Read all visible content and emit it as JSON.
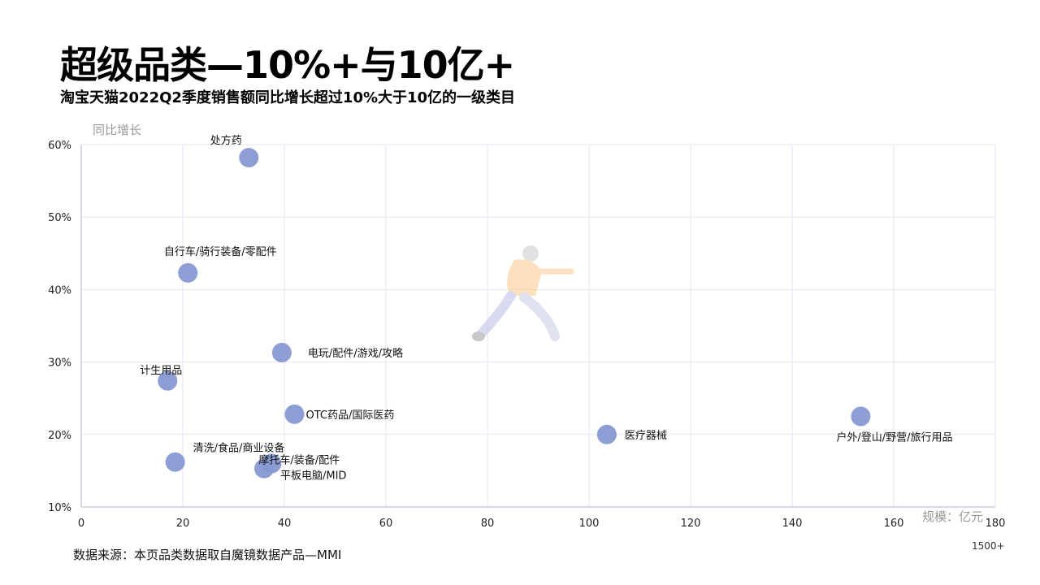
{
  "page": {
    "title": "超级品类—10%+与10亿+",
    "subtitle": "淘宝天猫2022Q2季度销售额同比增长超过10%大于10亿的一级类目",
    "footer": "数据来源：本页品类数据取自魔镜数据产品—MMI",
    "corner_note": "1500+"
  },
  "colors": {
    "bubble": "#8799d3",
    "grid": "#e3e6f3",
    "axis_label": "#999999"
  },
  "icons": {
    "illustration": "running-person-illustration"
  },
  "chart_data": {
    "type": "scatter",
    "xlabel": "规模：亿元",
    "ylabel": "同比增长",
    "xlim": [
      0,
      180
    ],
    "ylim": [
      10,
      60
    ],
    "x_ticks": [
      "0",
      "20",
      "40",
      "60",
      "80",
      "100",
      "120",
      "140",
      "160",
      "180"
    ],
    "y_ticks": [
      "10%",
      "20%",
      "30%",
      "40%",
      "50%",
      "60%"
    ],
    "grid": true,
    "points": [
      {
        "label": "处方药",
        "x": 33,
        "y": 58.2
      },
      {
        "label": "自行车/骑行装备/零配件",
        "x": 21,
        "y": 42.3
      },
      {
        "label": "电玩/配件/游戏/攻略",
        "x": 39.5,
        "y": 31.3
      },
      {
        "label": "计生用品",
        "x": 17,
        "y": 27.4
      },
      {
        "label": "OTC药品/国际医药",
        "x": 42,
        "y": 22.8
      },
      {
        "label": "医疗器械",
        "x": 103.5,
        "y": 20
      },
      {
        "label": "户外/登山/野营/旅行用品",
        "x": 153.5,
        "y": 22.5
      },
      {
        "label": "清洗/食品/商业设备",
        "x": 18.5,
        "y": 16.2
      },
      {
        "label": "摩托车/装备/配件",
        "x": 37.5,
        "y": 16
      },
      {
        "label": "平板电脑/MID",
        "x": 36,
        "y": 15.3
      }
    ]
  }
}
